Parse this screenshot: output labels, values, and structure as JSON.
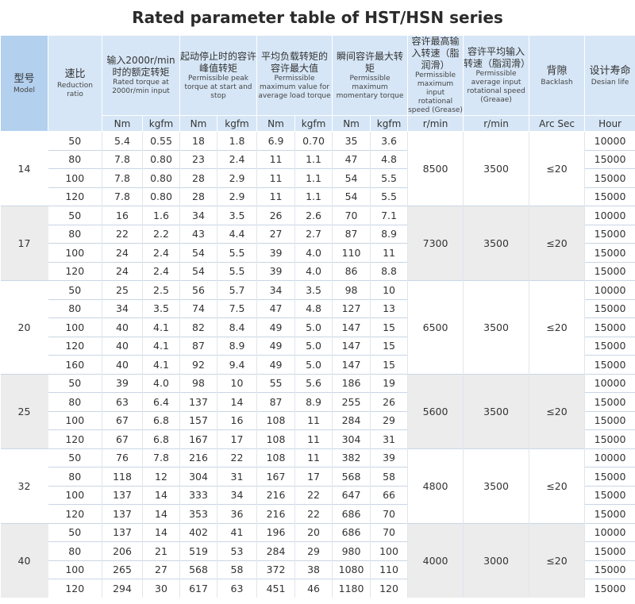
{
  "title": "Rated parameter table of HST/HSN series",
  "headers": {
    "model_cn": "型号",
    "model_en": "Model",
    "ratio_cn": "速比",
    "ratio_en": "Reduction ratio",
    "rated_cn": "输入2000r/min时的额定转矩",
    "rated_en": "Rated torque at 2000r/min input",
    "peak_cn": "起动停止时的容许峰值转矩",
    "peak_en": "Permissible peak torque at start and stop",
    "avg_cn": "平均负载转矩的容许最大值",
    "avg_en": "Permissible maximum value for average load torque",
    "mom_cn": "瞬间容许最大转矩",
    "mom_en": "Permissible maximum momentary torque",
    "maxspeed_cn": "容许最高输入转速（脂润滑）",
    "maxspeed_en": "Permissible maximum input rotational speed (Grease)",
    "avgspeed_cn": "容许平均输入转速（脂润滑）",
    "avgspeed_en": "Permissible average input rotational speed (Greaae)",
    "backlash_cn": "背隙",
    "backlash_en": "Backlash",
    "life_cn": "设计寿命",
    "life_en": "Desian life"
  },
  "units": {
    "nm": "Nm",
    "kgfm": "kgfm",
    "rmin": "r/min",
    "arcsec": "Arc Sec",
    "hour": "Hour"
  },
  "groups": [
    {
      "model": "14",
      "max_speed": "8500",
      "avg_speed": "3500",
      "backlash": "≤20",
      "rows": [
        [
          "50",
          "5.4",
          "0.55",
          "18",
          "1.8",
          "6.9",
          "0.70",
          "35",
          "3.6",
          "10000"
        ],
        [
          "80",
          "7.8",
          "0.80",
          "23",
          "2.4",
          "11",
          "1.1",
          "47",
          "4.8",
          "15000"
        ],
        [
          "100",
          "7.8",
          "0.80",
          "28",
          "2.9",
          "11",
          "1.1",
          "54",
          "5.5",
          "15000"
        ],
        [
          "120",
          "7.8",
          "0.80",
          "28",
          "2.9",
          "11",
          "1.1",
          "54",
          "5.5",
          "15000"
        ]
      ]
    },
    {
      "model": "17",
      "max_speed": "7300",
      "avg_speed": "3500",
      "backlash": "≤20",
      "rows": [
        [
          "50",
          "16",
          "1.6",
          "34",
          "3.5",
          "26",
          "2.6",
          "70",
          "7.1",
          "10000"
        ],
        [
          "80",
          "22",
          "2.2",
          "43",
          "4.4",
          "27",
          "2.7",
          "87",
          "8.9",
          "15000"
        ],
        [
          "100",
          "24",
          "2.4",
          "54",
          "5.5",
          "39",
          "4.0",
          "110",
          "11",
          "15000"
        ],
        [
          "120",
          "24",
          "2.4",
          "54",
          "5.5",
          "39",
          "4.0",
          "86",
          "8.8",
          "15000"
        ]
      ]
    },
    {
      "model": "20",
      "max_speed": "6500",
      "avg_speed": "3500",
      "backlash": "≤20",
      "rows": [
        [
          "50",
          "25",
          "2.5",
          "56",
          "5.7",
          "34",
          "3.5",
          "98",
          "10",
          "10000"
        ],
        [
          "80",
          "34",
          "3.5",
          "74",
          "7.5",
          "47",
          "4.8",
          "127",
          "13",
          "15000"
        ],
        [
          "100",
          "40",
          "4.1",
          "82",
          "8.4",
          "49",
          "5.0",
          "147",
          "15",
          "15000"
        ],
        [
          "120",
          "40",
          "4.1",
          "87",
          "8.9",
          "49",
          "5.0",
          "147",
          "15",
          "15000"
        ],
        [
          "160",
          "40",
          "4.1",
          "92",
          "9.4",
          "49",
          "5.0",
          "147",
          "15",
          "15000"
        ]
      ]
    },
    {
      "model": "25",
      "max_speed": "5600",
      "avg_speed": "3500",
      "backlash": "≤20",
      "rows": [
        [
          "50",
          "39",
          "4.0",
          "98",
          "10",
          "55",
          "5.6",
          "186",
          "19",
          "10000"
        ],
        [
          "80",
          "63",
          "6.4",
          "137",
          "14",
          "87",
          "8.9",
          "255",
          "26",
          "15000"
        ],
        [
          "100",
          "67",
          "6.8",
          "157",
          "16",
          "108",
          "11",
          "284",
          "29",
          "15000"
        ],
        [
          "120",
          "67",
          "6.8",
          "167",
          "17",
          "108",
          "11",
          "304",
          "31",
          "15000"
        ]
      ]
    },
    {
      "model": "32",
      "max_speed": "4800",
      "avg_speed": "3500",
      "backlash": "≤20",
      "rows": [
        [
          "50",
          "76",
          "7.8",
          "216",
          "22",
          "108",
          "11",
          "382",
          "39",
          "10000"
        ],
        [
          "80",
          "118",
          "12",
          "304",
          "31",
          "167",
          "17",
          "568",
          "58",
          "15000"
        ],
        [
          "100",
          "137",
          "14",
          "333",
          "34",
          "216",
          "22",
          "647",
          "66",
          "15000"
        ],
        [
          "120",
          "137",
          "14",
          "353",
          "36",
          "216",
          "22",
          "686",
          "70",
          "15000"
        ]
      ]
    },
    {
      "model": "40",
      "max_speed": "4000",
      "avg_speed": "3000",
      "backlash": "≤20",
      "rows": [
        [
          "50",
          "137",
          "14",
          "402",
          "41",
          "196",
          "20",
          "686",
          "70",
          "10000"
        ],
        [
          "80",
          "206",
          "21",
          "519",
          "53",
          "284",
          "29",
          "980",
          "100",
          "15000"
        ],
        [
          "100",
          "265",
          "27",
          "568",
          "58",
          "372",
          "38",
          "1080",
          "110",
          "15000"
        ],
        [
          "120",
          "294",
          "30",
          "617",
          "63",
          "451",
          "46",
          "1180",
          "120",
          "15000"
        ]
      ]
    }
  ]
}
